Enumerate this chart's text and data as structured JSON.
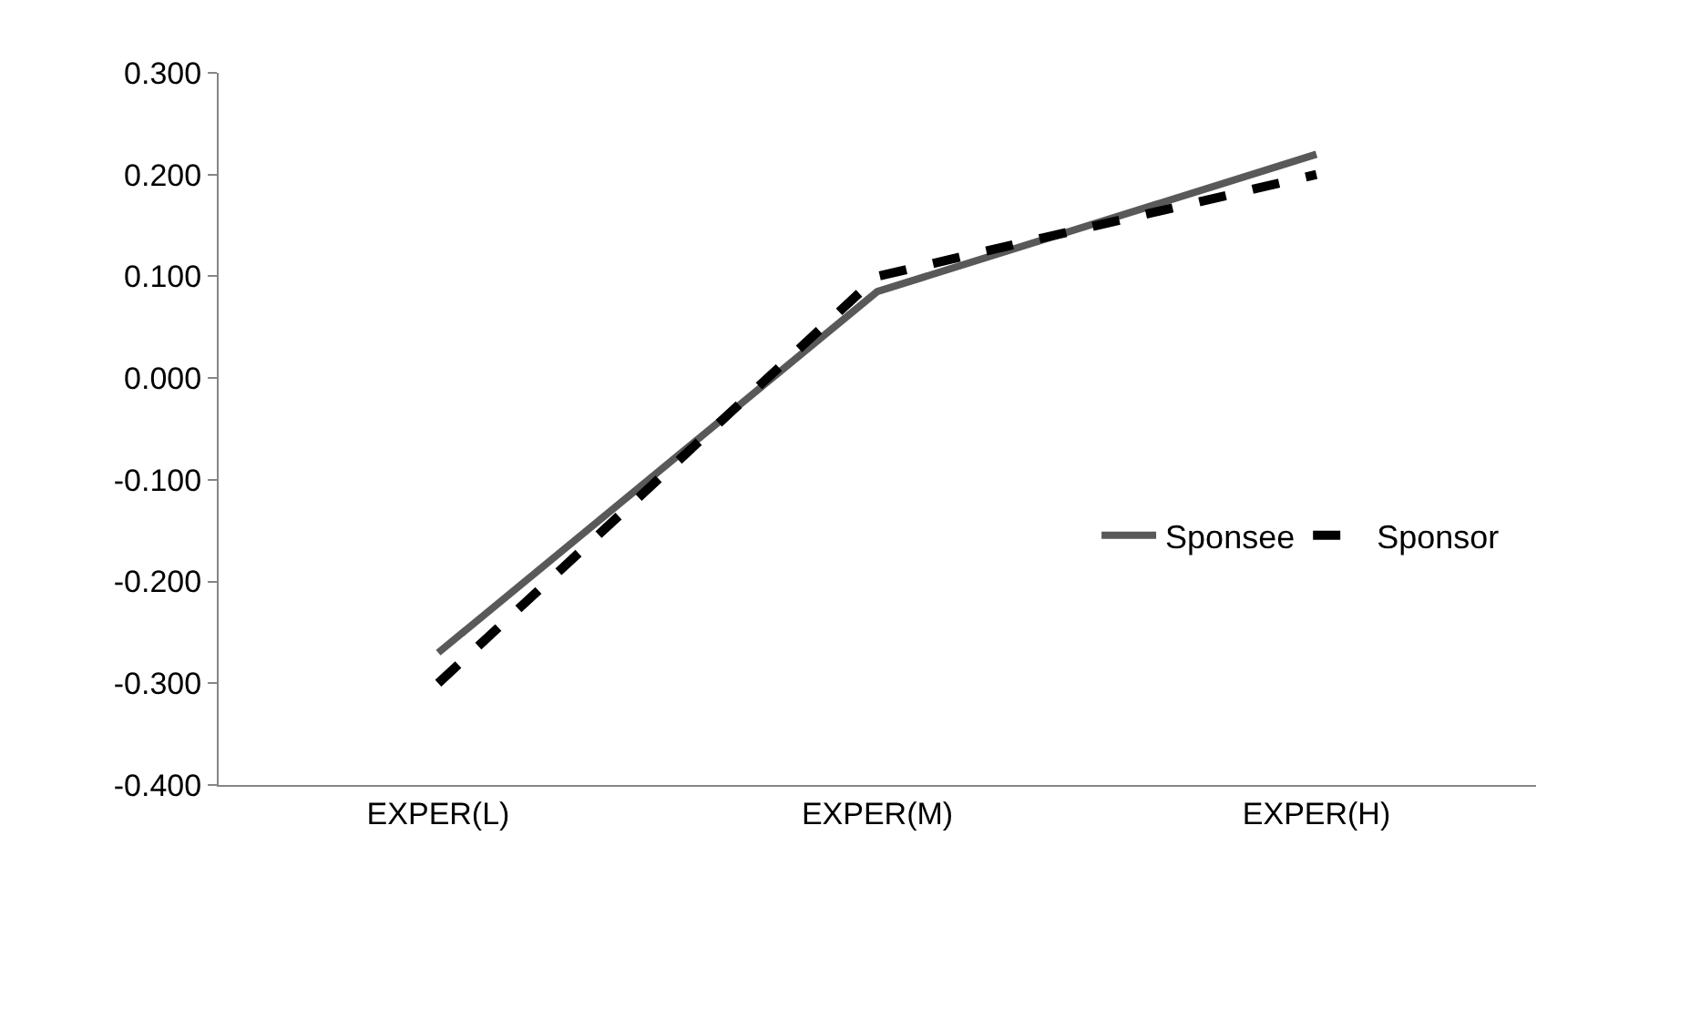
{
  "chart_data": {
    "type": "line",
    "categories": [
      "EXPER(L)",
      "EXPER(M)",
      "EXPER(H)"
    ],
    "series": [
      {
        "name": "Sponsee",
        "color": "#595959",
        "values": [
          -0.27,
          0.085,
          0.22
        ],
        "line_style": "solid"
      },
      {
        "name": "Sponsor",
        "color": "#000000",
        "values": [
          -0.3,
          0.1,
          0.2
        ],
        "line_style": "dashed"
      }
    ],
    "ylim": [
      -0.4,
      0.3
    ],
    "yticks": [
      {
        "value": -0.4,
        "label": "-0.400"
      },
      {
        "value": -0.3,
        "label": "-0.300"
      },
      {
        "value": -0.2,
        "label": "-0.200"
      },
      {
        "value": -0.1,
        "label": "-0.100"
      },
      {
        "value": 0,
        "label": "0.000"
      },
      {
        "value": 0.1,
        "label": "0.100"
      },
      {
        "value": 0.2,
        "label": "0.200"
      },
      {
        "value": 0.3,
        "label": "0.300"
      }
    ],
    "legend": "right",
    "marker": "none"
  }
}
